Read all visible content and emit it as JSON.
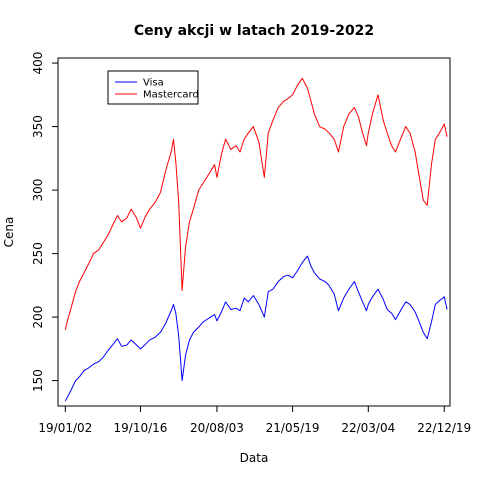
{
  "chart_data": {
    "type": "line",
    "title": "Ceny akcji w latach 2019-2022",
    "xlabel": "Data",
    "ylabel": "Cena",
    "x_tick_labels": [
      "19/01/02",
      "19/10/16",
      "20/08/03",
      "21/05/19",
      "22/03/04",
      "22/12/19"
    ],
    "x_ticks": [
      "2019-01-02",
      "2019-10-16",
      "2020-08-03",
      "2021-05-19",
      "2022-03-04",
      "2022-12-19"
    ],
    "xlim": [
      "2018-12-05",
      "2023-01-10"
    ],
    "y_ticks": [
      150,
      200,
      250,
      300,
      350,
      400
    ],
    "ylim": [
      130,
      404
    ],
    "grid": false,
    "legend_position": "top-left",
    "series": [
      {
        "name": "Visa",
        "color": "#0000ff",
        "x": [
          "2019-01-02",
          "2019-01-10",
          "2019-01-25",
          "2019-02-10",
          "2019-02-25",
          "2019-03-15",
          "2019-04-01",
          "2019-04-20",
          "2019-05-10",
          "2019-05-25",
          "2019-06-15",
          "2019-07-01",
          "2019-07-20",
          "2019-08-05",
          "2019-08-25",
          "2019-09-10",
          "2019-10-01",
          "2019-10-16",
          "2019-11-01",
          "2019-11-20",
          "2019-12-10",
          "2019-12-31",
          "2020-01-20",
          "2020-02-10",
          "2020-02-19",
          "2020-02-28",
          "2020-03-10",
          "2020-03-23",
          "2020-04-05",
          "2020-04-20",
          "2020-05-05",
          "2020-05-25",
          "2020-06-10",
          "2020-06-25",
          "2020-07-10",
          "2020-07-25",
          "2020-08-03",
          "2020-08-20",
          "2020-09-05",
          "2020-09-25",
          "2020-10-15",
          "2020-10-30",
          "2020-11-15",
          "2020-12-01",
          "2020-12-20",
          "2021-01-10",
          "2021-01-31",
          "2021-02-15",
          "2021-03-05",
          "2021-03-25",
          "2021-04-15",
          "2021-05-01",
          "2021-05-19",
          "2021-06-05",
          "2021-06-25",
          "2021-07-15",
          "2021-07-28",
          "2021-08-10",
          "2021-08-30",
          "2021-09-20",
          "2021-10-05",
          "2021-10-25",
          "2021-11-10",
          "2021-11-30",
          "2021-12-20",
          "2022-01-10",
          "2022-01-25",
          "2022-02-10",
          "2022-02-25",
          "2022-03-04",
          "2022-03-20",
          "2022-04-10",
          "2022-04-30",
          "2022-05-15",
          "2022-06-01",
          "2022-06-16",
          "2022-07-05",
          "2022-07-25",
          "2022-08-10",
          "2022-08-30",
          "2022-09-15",
          "2022-09-30",
          "2022-10-15",
          "2022-10-31",
          "2022-11-15",
          "2022-12-01",
          "2022-12-19",
          "2022-12-30"
        ],
        "y": [
          134,
          137,
          143,
          150,
          153,
          158,
          160,
          163,
          165,
          168,
          174,
          178,
          183,
          177,
          178,
          182,
          178,
          175,
          178,
          182,
          184,
          188,
          195,
          205,
          210,
          203,
          185,
          150,
          170,
          182,
          188,
          192,
          196,
          198,
          200,
          202,
          197,
          204,
          212,
          206,
          207,
          205,
          215,
          212,
          217,
          210,
          200,
          220,
          222,
          228,
          232,
          233,
          231,
          236,
          243,
          248,
          240,
          235,
          230,
          228,
          225,
          218,
          205,
          215,
          222,
          228,
          220,
          212,
          205,
          210,
          216,
          222,
          214,
          206,
          203,
          198,
          205,
          212,
          210,
          204,
          196,
          188,
          183,
          196,
          210,
          213,
          216,
          206
        ]
      },
      {
        "name": "Mastercard",
        "color": "#ff0000",
        "x": [
          "2019-01-02",
          "2019-01-10",
          "2019-01-25",
          "2019-02-10",
          "2019-02-25",
          "2019-03-15",
          "2019-04-01",
          "2019-04-20",
          "2019-05-10",
          "2019-05-25",
          "2019-06-15",
          "2019-07-01",
          "2019-07-20",
          "2019-08-05",
          "2019-08-25",
          "2019-09-10",
          "2019-10-01",
          "2019-10-16",
          "2019-11-01",
          "2019-11-20",
          "2019-12-10",
          "2019-12-31",
          "2020-01-20",
          "2020-02-10",
          "2020-02-19",
          "2020-02-28",
          "2020-03-10",
          "2020-03-23",
          "2020-04-05",
          "2020-04-20",
          "2020-05-05",
          "2020-05-25",
          "2020-06-10",
          "2020-06-25",
          "2020-07-10",
          "2020-07-25",
          "2020-08-03",
          "2020-08-20",
          "2020-09-05",
          "2020-09-25",
          "2020-10-15",
          "2020-10-30",
          "2020-11-15",
          "2020-12-01",
          "2020-12-20",
          "2021-01-10",
          "2021-01-31",
          "2021-02-15",
          "2021-03-05",
          "2021-03-25",
          "2021-04-15",
          "2021-05-01",
          "2021-05-19",
          "2021-06-05",
          "2021-06-25",
          "2021-07-15",
          "2021-07-28",
          "2021-08-10",
          "2021-08-30",
          "2021-09-20",
          "2021-10-05",
          "2021-10-25",
          "2021-11-10",
          "2021-11-30",
          "2021-12-20",
          "2022-01-10",
          "2022-01-25",
          "2022-02-10",
          "2022-02-25",
          "2022-03-04",
          "2022-03-20",
          "2022-04-10",
          "2022-04-30",
          "2022-05-15",
          "2022-06-01",
          "2022-06-16",
          "2022-07-05",
          "2022-07-25",
          "2022-08-10",
          "2022-08-30",
          "2022-09-15",
          "2022-09-30",
          "2022-10-15",
          "2022-10-31",
          "2022-11-15",
          "2022-12-01",
          "2022-12-19",
          "2022-12-30"
        ],
        "y": [
          190,
          197,
          208,
          220,
          228,
          235,
          242,
          250,
          253,
          258,
          265,
          272,
          280,
          275,
          278,
          285,
          278,
          270,
          278,
          285,
          290,
          298,
          315,
          330,
          340,
          322,
          290,
          221,
          255,
          275,
          285,
          300,
          305,
          310,
          315,
          320,
          310,
          328,
          340,
          332,
          335,
          330,
          340,
          345,
          350,
          338,
          310,
          345,
          355,
          365,
          370,
          372,
          375,
          382,
          388,
          380,
          370,
          360,
          350,
          348,
          345,
          340,
          330,
          350,
          360,
          365,
          358,
          345,
          335,
          345,
          360,
          375,
          355,
          345,
          335,
          330,
          340,
          350,
          345,
          330,
          310,
          292,
          288,
          320,
          340,
          345,
          352,
          342
        ]
      }
    ]
  }
}
